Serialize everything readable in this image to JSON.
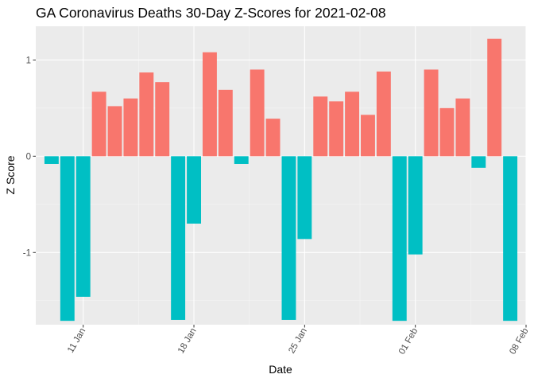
{
  "chart_data": {
    "type": "bar",
    "title": "GA Coronavirus Deaths 30-Day Z-Scores for 2021-02-08",
    "xlabel": "Date",
    "ylabel": "Z Score",
    "x_start": "2021-01-09",
    "x_end": "2021-02-07",
    "xlim": [
      "2021-01-08",
      "2021-02-08"
    ],
    "ylim": [
      -1.75,
      1.35
    ],
    "x_ticks": [
      {
        "date": "2021-01-11",
        "label": "11 Jan"
      },
      {
        "date": "2021-01-18",
        "label": "18 Jan"
      },
      {
        "date": "2021-01-25",
        "label": "25 Jan"
      },
      {
        "date": "2021-02-01",
        "label": "01 Feb"
      },
      {
        "date": "2021-02-08",
        "label": "08 Feb"
      }
    ],
    "y_ticks": [
      {
        "value": 1,
        "label": "1"
      },
      {
        "value": 0,
        "label": "0"
      },
      {
        "value": -1,
        "label": "-1"
      }
    ],
    "grid": true,
    "legend": "none",
    "colors": {
      "positive": "#F8766D",
      "negative": "#00BFC4",
      "panel": "#EBEBEB",
      "grid_major": "#FFFFFF",
      "grid_minor": "#F5F5F5",
      "tick_text": "#4D4D4D"
    },
    "values": [
      -0.08,
      -1.71,
      -1.46,
      0.67,
      0.52,
      0.6,
      0.87,
      0.77,
      -1.7,
      -0.7,
      1.08,
      0.69,
      -0.08,
      0.9,
      0.39,
      -1.7,
      -0.86,
      0.62,
      0.57,
      0.67,
      0.43,
      0.88,
      -1.71,
      -1.02,
      0.9,
      0.5,
      0.6,
      -0.12,
      1.22,
      -1.71
    ]
  }
}
